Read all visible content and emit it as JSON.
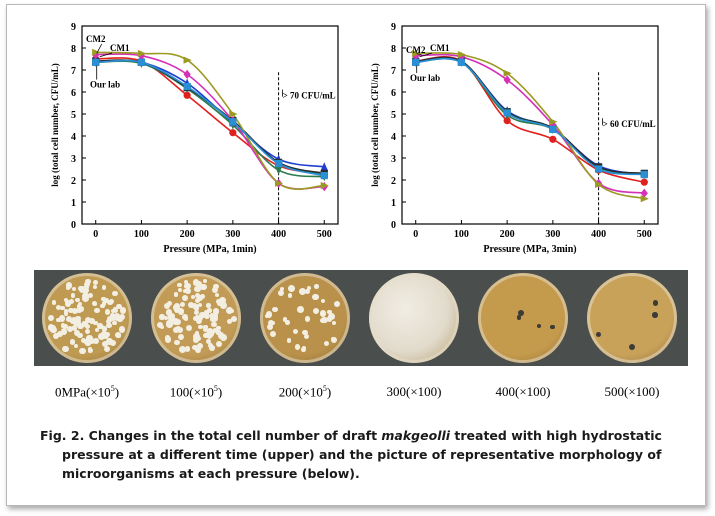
{
  "chart_data": [
    {
      "type": "line",
      "ylabel": "log (total cell number, CFU/mL)",
      "xlabel": "Pressure (MPa, 1min)",
      "x": [
        0,
        100,
        200,
        300,
        400,
        500
      ],
      "xlim": [
        -30,
        530
      ],
      "ylim": [
        0,
        9
      ],
      "xticks": [
        0,
        100,
        200,
        300,
        400,
        500
      ],
      "yticks": [
        0,
        1,
        2,
        3,
        4,
        5,
        6,
        7,
        8,
        9
      ],
      "annotations": [
        "CM2",
        "CM1",
        "Our lab",
        "> 70 CFU/mL"
      ],
      "series": [
        {
          "color": "#e0201e",
          "marker": "circle",
          "values": [
            7.5,
            7.4,
            5.85,
            4.15,
            2.65,
            2.3
          ]
        },
        {
          "color": "#1f3fd0",
          "marker": "triangle",
          "values": [
            7.4,
            7.35,
            6.4,
            4.6,
            2.95,
            2.6
          ]
        },
        {
          "color": "#2d7a4a",
          "marker": "triangle-down",
          "values": [
            7.35,
            7.3,
            6.15,
            4.5,
            2.45,
            2.15
          ]
        },
        {
          "color": "#25a7b5",
          "marker": "square",
          "values": [
            7.35,
            7.35,
            6.2,
            4.65,
            2.75,
            2.25
          ]
        },
        {
          "color": "#2a2a2a",
          "marker": "square",
          "values": [
            7.4,
            7.35,
            6.2,
            4.7,
            2.8,
            2.3
          ]
        },
        {
          "color": "#d531b8",
          "marker": "diamond",
          "values": [
            7.7,
            7.65,
            6.8,
            4.7,
            1.85,
            1.7
          ]
        },
        {
          "color": "#9b9a22",
          "marker": "triangle-right",
          "values": [
            7.8,
            7.75,
            7.45,
            5.0,
            1.85,
            1.75
          ]
        },
        {
          "color": "#2b8fd6",
          "marker": "square",
          "values": [
            7.35,
            7.35,
            6.25,
            4.65,
            2.75,
            2.2
          ]
        }
      ]
    },
    {
      "type": "line",
      "ylabel": "log (total cell number, CFU/mL)",
      "xlabel": "Pressure (MPa, 3min)",
      "x": [
        0,
        100,
        200,
        300,
        400,
        500
      ],
      "xlim": [
        -30,
        530
      ],
      "ylim": [
        0,
        9
      ],
      "xticks": [
        0,
        100,
        200,
        300,
        400,
        500
      ],
      "yticks": [
        0,
        1,
        2,
        3,
        4,
        5,
        6,
        7,
        8,
        9
      ],
      "annotations": [
        "CM2",
        "CM1",
        "Our lab",
        "> 60 CFU/mL"
      ],
      "series": [
        {
          "color": "#e0201e",
          "marker": "circle",
          "values": [
            7.4,
            7.4,
            4.7,
            3.85,
            2.45,
            1.9
          ]
        },
        {
          "color": "#1f3fd0",
          "marker": "triangle",
          "values": [
            7.35,
            7.35,
            5.15,
            4.3,
            2.65,
            2.25
          ]
        },
        {
          "color": "#2d7a4a",
          "marker": "triangle-down",
          "values": [
            7.35,
            7.35,
            4.95,
            4.3,
            2.55,
            2.25
          ]
        },
        {
          "color": "#25a7b5",
          "marker": "square",
          "values": [
            7.35,
            7.35,
            5.1,
            4.35,
            2.55,
            2.3
          ]
        },
        {
          "color": "#2a2a2a",
          "marker": "square",
          "values": [
            7.4,
            7.4,
            5.1,
            4.35,
            2.6,
            2.3
          ]
        },
        {
          "color": "#d531b8",
          "marker": "diamond",
          "values": [
            7.65,
            7.6,
            6.55,
            4.5,
            1.85,
            1.4
          ]
        },
        {
          "color": "#9b9a22",
          "marker": "triangle-right",
          "values": [
            7.75,
            7.7,
            6.85,
            4.65,
            1.8,
            1.15
          ]
        },
        {
          "color": "#2b8fd6",
          "marker": "square",
          "values": [
            7.35,
            7.35,
            5.05,
            4.3,
            2.5,
            2.25
          ]
        }
      ]
    }
  ],
  "plates": [
    {
      "label": "0MPa(×10",
      "sup": "5",
      "tail": ")",
      "colonies": "many-white",
      "base": "#bf9a52"
    },
    {
      "label": "100(×10",
      "sup": "5",
      "tail": ")",
      "colonies": "many-white",
      "base": "#c29c56"
    },
    {
      "label": "200(×10",
      "sup": "5",
      "tail": ")",
      "colonies": "few-white",
      "base": "#b9914a"
    },
    {
      "label": "300(×100)",
      "sup": "",
      "tail": "",
      "colonies": "film",
      "base": "#d8d2c4"
    },
    {
      "label": "400(×100)",
      "sup": "",
      "tail": "",
      "colonies": "sparse-dark",
      "base": "#c49a4c"
    },
    {
      "label": "500(×100)",
      "sup": "",
      "tail": "",
      "colonies": "sparse-dark",
      "base": "#c9a25a"
    }
  ],
  "caption": {
    "line1_pre": "Fig. 2. Changes in the total cell number of draft ",
    "line1_italic": "makgeolli",
    "line1_post": " treated with high hydrostatic",
    "line2": "pressure at a different time (upper) and the picture of representative morphology of",
    "line3": "microorganisms at each pressure (below)."
  }
}
